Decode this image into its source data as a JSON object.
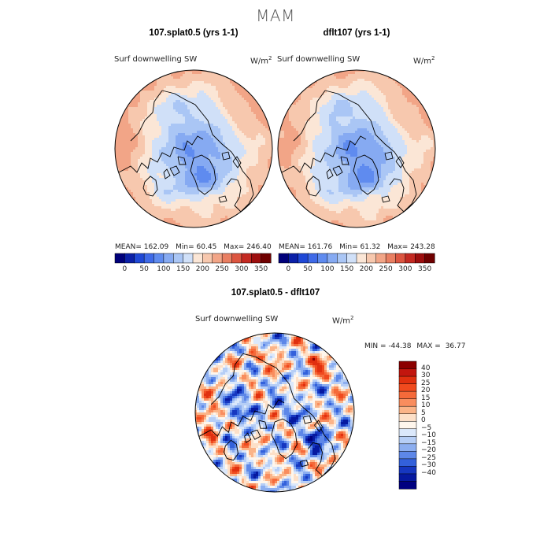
{
  "figure": {
    "title": "MAM"
  },
  "chart_data": [
    {
      "type": "heatmap",
      "projection": "north-polar-stereographic",
      "title": "107.splat0.5 (yrs 1-1)",
      "variable": "Surf downwelling SW",
      "units_prefix": "W/m",
      "units_exp": "2",
      "stats": {
        "mean_label": "MEAN=",
        "mean": "162.09",
        "min_label": "Min=",
        "min": "60.45",
        "max_label": "Max=",
        "max": "246.40"
      },
      "colorbar": {
        "levels": [
          0,
          25,
          50,
          75,
          100,
          125,
          150,
          175,
          200,
          225,
          250,
          275,
          300,
          325,
          350
        ],
        "tick_labels": [
          "0",
          "50",
          "100",
          "150",
          "200",
          "250",
          "300",
          "350"
        ],
        "colors": [
          "#00007a",
          "#0b20a8",
          "#1f48d6",
          "#3f6ae8",
          "#5f8bef",
          "#86aaf2",
          "#aac6f5",
          "#d0e0f8",
          "#fbe6d6",
          "#f7c8ae",
          "#f2a587",
          "#e97f62",
          "#dc5540",
          "#c42a22",
          "#9d0e0e",
          "#6f0000"
        ]
      }
    },
    {
      "type": "heatmap",
      "projection": "north-polar-stereographic",
      "title": "dflt107 (yrs 1-1)",
      "variable": "Surf downwelling SW",
      "units_prefix": "W/m",
      "units_exp": "2",
      "stats": {
        "mean_label": "MEAN=",
        "mean": "161.76",
        "min_label": "Min=",
        "min": "61.32",
        "max_label": "Max=",
        "max": "243.28"
      },
      "colorbar": {
        "levels": [
          0,
          25,
          50,
          75,
          100,
          125,
          150,
          175,
          200,
          225,
          250,
          275,
          300,
          325,
          350
        ],
        "tick_labels": [
          "0",
          "50",
          "100",
          "150",
          "200",
          "250",
          "300",
          "350"
        ],
        "colors": [
          "#00007a",
          "#0b20a8",
          "#1f48d6",
          "#3f6ae8",
          "#5f8bef",
          "#86aaf2",
          "#aac6f5",
          "#d0e0f8",
          "#fbe6d6",
          "#f7c8ae",
          "#f2a587",
          "#e97f62",
          "#dc5540",
          "#c42a22",
          "#9d0e0e",
          "#6f0000"
        ]
      }
    },
    {
      "type": "heatmap",
      "projection": "north-polar-stereographic",
      "title": "107.splat0.5 - dflt107",
      "variable": "Surf downwelling SW",
      "units_prefix": "W/m",
      "units_exp": "2",
      "stats": {
        "min_label": "MIN =",
        "min": "-44.38",
        "max_label": "MAX =",
        "max": "36.77"
      },
      "colorbar": {
        "orientation": "vertical",
        "tick_labels": [
          "40",
          "30",
          "25",
          "20",
          "15",
          "10",
          "5",
          "0",
          "−5",
          "−10",
          "−15",
          "−20",
          "−25",
          "−30",
          "−40"
        ],
        "colors": [
          "#8b0000",
          "#c2160e",
          "#e0300f",
          "#f04a1e",
          "#f56a3a",
          "#f98d5e",
          "#fbb488",
          "#fde0c8",
          "#fff6ec",
          "#dbe8fb",
          "#b6cef6",
          "#8caef0",
          "#5d87e8",
          "#3361db",
          "#1637c0",
          "#0619a0",
          "#000080"
        ]
      }
    }
  ]
}
